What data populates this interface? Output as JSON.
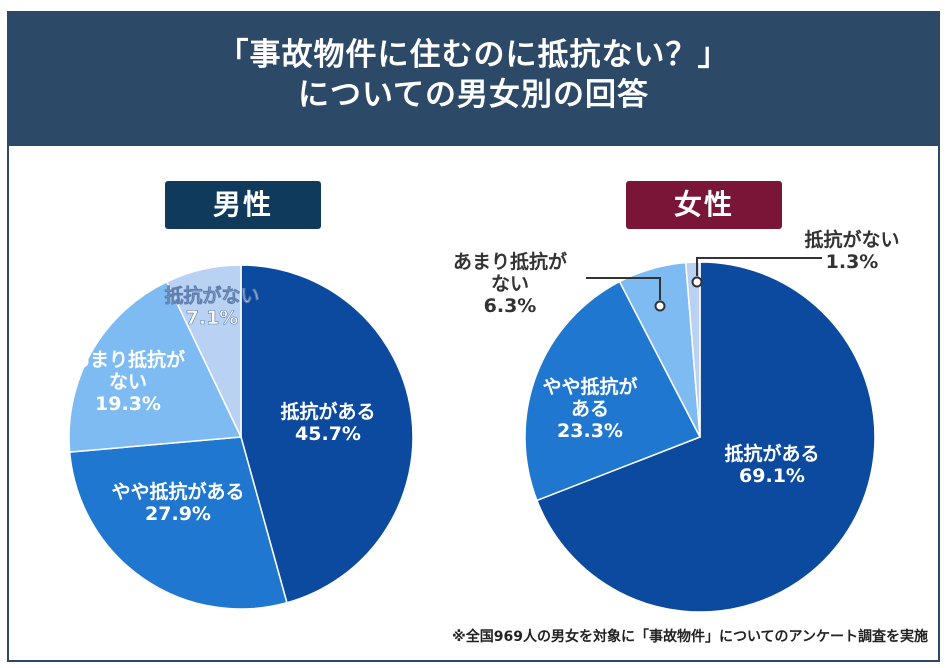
{
  "header": {
    "title_line1": "「事故物件に住むのに抵抗ない？」",
    "title_line2": "についての男女別の回答"
  },
  "footnote": "※全国969人の男女を対象に「事故物件」についてのアンケート調査を実施",
  "colors": {
    "header_bg": "#2d4968",
    "male_badge": "#0f3a5c",
    "female_badge": "#7a1537",
    "slice_resistant": "#0c4aa0",
    "slice_somewhat": "#1f77cf",
    "slice_not_much": "#7dbbf2",
    "slice_none": "#b9d2f3"
  },
  "chart_data": [
    {
      "type": "pie",
      "title": "男性",
      "slices": [
        {
          "label": "抵抗がある",
          "value": 45.7,
          "display": "45.7%"
        },
        {
          "label": "やや抵抗がある",
          "value": 27.9,
          "display": "27.9%"
        },
        {
          "label": "あまり抵抗が\nない",
          "value": 19.3,
          "display": "19.3%"
        },
        {
          "label": "抵抗がない",
          "value": 7.1,
          "display": "7.1%"
        }
      ]
    },
    {
      "type": "pie",
      "title": "女性",
      "slices": [
        {
          "label": "抵抗がある",
          "value": 69.1,
          "display": "69.1%"
        },
        {
          "label": "やや抵抗が\nある",
          "value": 23.3,
          "display": "23.3%"
        },
        {
          "label": "あまり抵抗が\nない",
          "value": 6.3,
          "display": "6.3%"
        },
        {
          "label": "抵抗がない",
          "value": 1.3,
          "display": "1.3%"
        }
      ]
    }
  ]
}
